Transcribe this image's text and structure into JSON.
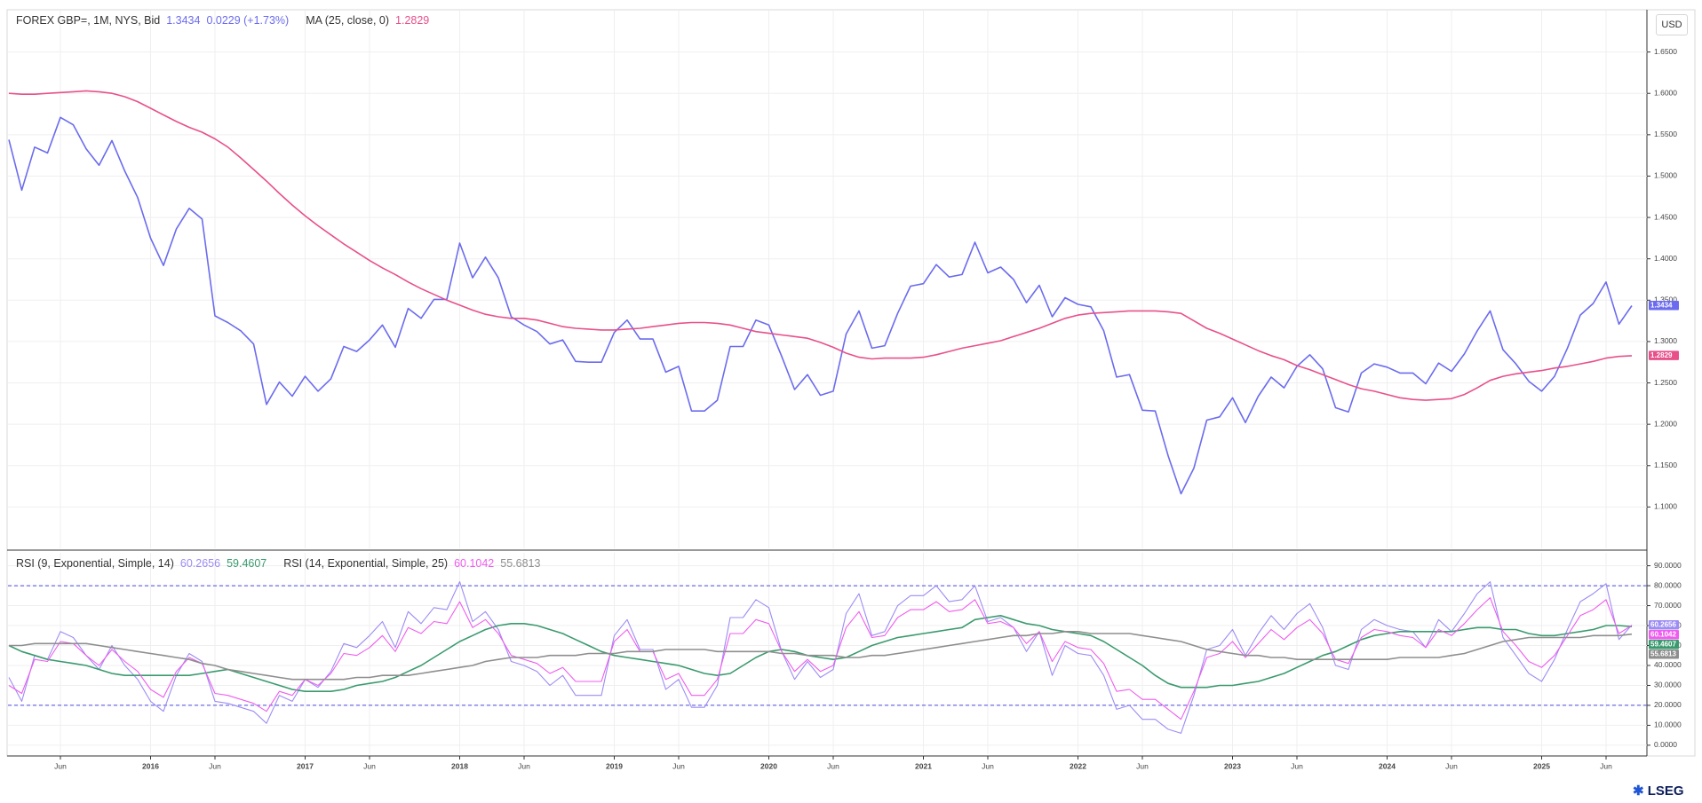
{
  "currency": "USD",
  "brand": "LSEG",
  "chart_data": [
    {
      "type": "line",
      "grid": true,
      "ylim": [
        1.05,
        1.7
      ],
      "yticks": [
        {
          "value": 1.1,
          "label": "1.1000"
        },
        {
          "value": 1.15,
          "label": "1.1500"
        },
        {
          "value": 1.2,
          "label": "1.2000"
        },
        {
          "value": 1.25,
          "label": "1.2500"
        },
        {
          "value": 1.3,
          "label": "1.3000"
        },
        {
          "value": 1.35,
          "label": "1.3500"
        },
        {
          "value": 1.4,
          "label": "1.4000"
        },
        {
          "value": 1.45,
          "label": "1.4500"
        },
        {
          "value": 1.5,
          "label": "1.5000"
        },
        {
          "value": 1.55,
          "label": "1.5500"
        },
        {
          "value": 1.6,
          "label": "1.6000"
        },
        {
          "value": 1.65,
          "label": "1.6500"
        }
      ],
      "series": [
        {
          "name": "FOREX GBP=, 1M, NYS, Bid",
          "change": "0.0229 (+1.73%)",
          "color": "#6b6bef",
          "values": [
            1.544,
            1.483,
            1.535,
            1.528,
            1.571,
            1.562,
            1.533,
            1.513,
            1.543,
            1.506,
            1.474,
            1.425,
            1.392,
            1.436,
            1.461,
            1.448,
            1.331,
            1.323,
            1.313,
            1.297,
            1.224,
            1.251,
            1.234,
            1.258,
            1.24,
            1.255,
            1.294,
            1.288,
            1.302,
            1.32,
            1.293,
            1.34,
            1.328,
            1.351,
            1.351,
            1.419,
            1.377,
            1.402,
            1.377,
            1.33,
            1.32,
            1.312,
            1.297,
            1.302,
            1.276,
            1.275,
            1.275,
            1.311,
            1.326,
            1.303,
            1.303,
            1.263,
            1.27,
            1.216,
            1.216,
            1.229,
            1.294,
            1.294,
            1.326,
            1.32,
            1.282,
            1.242,
            1.26,
            1.235,
            1.24,
            1.309,
            1.337,
            1.292,
            1.295,
            1.334,
            1.367,
            1.37,
            1.393,
            1.378,
            1.381,
            1.42,
            1.383,
            1.39,
            1.375,
            1.347,
            1.368,
            1.33,
            1.353,
            1.345,
            1.342,
            1.313,
            1.257,
            1.26,
            1.217,
            1.216,
            1.162,
            1.116,
            1.147,
            1.205,
            1.209,
            1.232,
            1.202,
            1.234,
            1.257,
            1.244,
            1.27,
            1.284,
            1.267,
            1.22,
            1.215,
            1.262,
            1.273,
            1.269,
            1.262,
            1.262,
            1.249,
            1.274,
            1.264,
            1.285,
            1.313,
            1.337,
            1.29,
            1.273,
            1.252,
            1.24,
            1.258,
            1.292,
            1.332,
            1.346,
            1.372,
            1.321,
            1.3434
          ]
        },
        {
          "name": "MA (25, close, 0)",
          "color": "#e8508a",
          "values": [
            1.6,
            1.599,
            1.599,
            1.6,
            1.601,
            1.602,
            1.603,
            1.602,
            1.6,
            1.596,
            1.59,
            1.582,
            1.574,
            1.566,
            1.559,
            1.553,
            1.545,
            1.535,
            1.522,
            1.508,
            1.494,
            1.479,
            1.465,
            1.452,
            1.44,
            1.429,
            1.418,
            1.408,
            1.398,
            1.389,
            1.381,
            1.372,
            1.364,
            1.357,
            1.35,
            1.344,
            1.338,
            1.333,
            1.33,
            1.328,
            1.328,
            1.326,
            1.322,
            1.318,
            1.316,
            1.315,
            1.314,
            1.314,
            1.315,
            1.316,
            1.318,
            1.32,
            1.322,
            1.323,
            1.323,
            1.322,
            1.32,
            1.316,
            1.312,
            1.31,
            1.308,
            1.306,
            1.304,
            1.299,
            1.293,
            1.286,
            1.281,
            1.279,
            1.28,
            1.28,
            1.28,
            1.281,
            1.284,
            1.288,
            1.292,
            1.295,
            1.298,
            1.301,
            1.306,
            1.311,
            1.316,
            1.322,
            1.328,
            1.332,
            1.334,
            1.335,
            1.336,
            1.337,
            1.337,
            1.337,
            1.336,
            1.334,
            1.325,
            1.316,
            1.31,
            1.303,
            1.296,
            1.289,
            1.283,
            1.278,
            1.271,
            1.266,
            1.26,
            1.254,
            1.248,
            1.243,
            1.24,
            1.236,
            1.232,
            1.23,
            1.229,
            1.23,
            1.231,
            1.236,
            1.244,
            1.253,
            1.258,
            1.261,
            1.263,
            1.265,
            1.268,
            1.27,
            1.273,
            1.276,
            1.28,
            1.282,
            1.2829
          ]
        }
      ]
    },
    {
      "type": "line",
      "grid": true,
      "ylim": [
        -4.5,
        96.5
      ],
      "yticks": [
        {
          "value": 0,
          "label": "0.0000"
        },
        {
          "value": 10,
          "label": "10.0000"
        },
        {
          "value": 20,
          "label": "20.0000"
        },
        {
          "value": 30,
          "label": "30.0000"
        },
        {
          "value": 40,
          "label": "40.0000"
        },
        {
          "value": 50,
          "label": "50.0000"
        },
        {
          "value": 60,
          "label": "60.0000"
        },
        {
          "value": 70,
          "label": "70.0000"
        },
        {
          "value": 80,
          "label": "80.0000"
        },
        {
          "value": 90,
          "label": "90.0000"
        }
      ],
      "reference_lines": [
        80,
        20
      ],
      "categories": [
        null,
        null,
        null,
        null,
        "Jun",
        null,
        null,
        null,
        null,
        null,
        null,
        "2016",
        null,
        null,
        null,
        null,
        "Jun",
        null,
        null,
        null,
        null,
        null,
        null,
        "2017",
        null,
        null,
        null,
        null,
        "Jun",
        null,
        null,
        null,
        null,
        null,
        null,
        "2018",
        null,
        null,
        null,
        null,
        "Jun",
        null,
        null,
        null,
        null,
        null,
        null,
        "2019",
        null,
        null,
        null,
        null,
        "Jun",
        null,
        null,
        null,
        null,
        null,
        null,
        "2020",
        null,
        null,
        null,
        null,
        "Jun",
        null,
        null,
        null,
        null,
        null,
        null,
        "2021",
        null,
        null,
        null,
        null,
        "Jun",
        null,
        null,
        null,
        null,
        null,
        null,
        "2022",
        null,
        null,
        null,
        null,
        "Jun",
        null,
        null,
        null,
        null,
        null,
        null,
        "2023",
        null,
        null,
        null,
        null,
        "Jun",
        null,
        null,
        null,
        null,
        null,
        null,
        "2024",
        null,
        null,
        null,
        null,
        "Jun",
        null,
        null,
        null,
        null,
        null,
        null,
        "2025",
        null,
        null,
        null,
        null,
        "Jun",
        null,
        null
      ],
      "series": [
        {
          "name": "RSI (9, Exponential, Simple, 14)",
          "color": "#9c8cf4",
          "values": [
            34,
            22,
            45,
            43,
            57,
            54,
            45,
            38,
            50,
            40,
            33,
            22,
            17,
            35,
            46,
            42,
            22,
            21,
            19,
            17,
            11,
            25,
            22,
            33,
            29,
            37,
            51,
            49,
            55,
            62,
            49,
            67,
            61,
            69,
            68,
            82,
            62,
            67,
            58,
            42,
            40,
            37,
            30,
            35,
            25,
            25,
            25,
            55,
            63,
            48,
            48,
            28,
            33,
            19,
            19,
            30,
            64,
            64,
            73,
            69,
            47,
            33,
            42,
            34,
            38,
            66,
            76,
            55,
            57,
            70,
            75,
            75,
            80,
            72,
            73,
            80,
            62,
            64,
            59,
            47,
            57,
            35,
            50,
            46,
            45,
            35,
            18,
            20,
            13,
            13,
            8,
            6,
            25,
            48,
            50,
            58,
            45,
            56,
            65,
            58,
            66,
            71,
            59,
            40,
            38,
            58,
            63,
            60,
            58,
            57,
            49,
            63,
            57,
            66,
            76,
            82,
            54,
            45,
            36,
            32,
            43,
            58,
            72,
            76,
            81,
            53,
            60.2656
          ]
        },
        {
          "color": "#3a9a6e",
          "values": [
            50,
            47,
            45,
            43,
            42,
            41,
            40,
            38,
            36,
            35,
            35,
            35,
            35,
            35,
            35,
            36,
            37,
            38,
            36,
            34,
            32,
            30,
            28,
            27,
            27,
            27,
            28,
            30,
            31,
            32,
            34,
            37,
            40,
            44,
            48,
            52,
            55,
            58,
            60,
            61,
            61,
            60,
            58,
            56,
            53,
            50,
            47,
            45,
            44,
            43,
            42,
            41,
            40,
            38,
            36,
            35,
            36,
            40,
            44,
            47,
            48,
            47,
            45,
            44,
            43,
            44,
            47,
            50,
            52,
            54,
            55,
            56,
            57,
            58,
            59,
            63,
            64,
            65,
            63,
            61,
            60,
            58,
            57,
            56,
            55,
            52,
            48,
            44,
            40,
            35,
            31,
            29,
            29,
            29,
            30,
            30,
            31,
            32,
            34,
            36,
            39,
            42,
            45,
            47,
            50,
            53,
            55,
            56,
            57,
            57,
            57,
            57,
            57,
            58,
            59,
            59,
            58,
            58,
            56,
            55,
            55,
            56,
            57,
            58,
            60,
            60,
            59.4607
          ]
        },
        {
          "name": "RSI (14, Exponential, Simple, 25)",
          "color": "#ef5cef",
          "values": [
            30,
            26,
            43,
            42,
            52,
            51,
            45,
            40,
            48,
            42,
            37,
            28,
            24,
            37,
            44,
            41,
            26,
            25,
            23,
            21,
            17,
            27,
            25,
            33,
            30,
            36,
            46,
            45,
            49,
            55,
            47,
            59,
            56,
            62,
            61,
            72,
            59,
            63,
            56,
            45,
            43,
            41,
            36,
            39,
            32,
            32,
            32,
            52,
            58,
            47,
            47,
            33,
            36,
            25,
            25,
            33,
            56,
            56,
            63,
            61,
            47,
            37,
            43,
            37,
            40,
            59,
            67,
            54,
            55,
            64,
            68,
            68,
            72,
            67,
            68,
            73,
            61,
            62,
            59,
            51,
            57,
            42,
            52,
            49,
            48,
            41,
            27,
            28,
            23,
            23,
            18,
            13,
            27,
            44,
            46,
            52,
            44,
            51,
            58,
            53,
            59,
            63,
            56,
            43,
            41,
            54,
            58,
            57,
            55,
            54,
            49,
            58,
            55,
            61,
            68,
            74,
            57,
            50,
            42,
            39,
            45,
            55,
            65,
            68,
            73,
            56,
            60.1042
          ]
        },
        {
          "color": "#8e8e8e",
          "values": [
            50,
            50,
            51,
            51,
            51,
            51,
            51,
            50,
            49,
            48,
            47,
            46,
            45,
            44,
            43,
            41,
            40,
            38,
            37,
            36,
            35,
            34,
            33,
            33,
            33,
            33,
            33,
            34,
            34,
            35,
            35,
            35,
            36,
            37,
            38,
            39,
            40,
            42,
            43,
            44,
            44,
            44,
            45,
            45,
            45,
            46,
            46,
            46,
            47,
            47,
            47,
            48,
            48,
            48,
            48,
            47,
            47,
            47,
            47,
            47,
            46,
            46,
            45,
            45,
            45,
            44,
            44,
            45,
            45,
            46,
            47,
            48,
            49,
            50,
            51,
            52,
            53,
            54,
            55,
            55,
            56,
            56,
            57,
            57,
            56,
            56,
            56,
            56,
            55,
            54,
            53,
            52,
            50,
            48,
            47,
            46,
            45,
            45,
            44,
            44,
            43,
            43,
            43,
            43,
            43,
            43,
            43,
            43,
            44,
            44,
            44,
            44,
            45,
            46,
            48,
            50,
            52,
            53,
            54,
            54,
            54,
            54,
            54,
            55,
            55,
            55,
            55.6813
          ]
        }
      ]
    }
  ]
}
